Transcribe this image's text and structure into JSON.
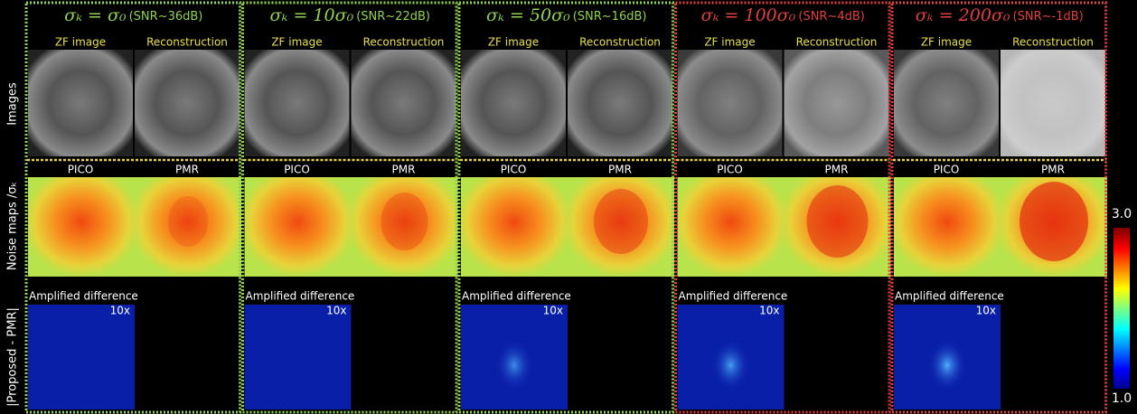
{
  "row_labels": [
    "Images",
    "Noise maps /σₖ",
    "|Proposed - PMR|"
  ],
  "image_labels": [
    "ZF image",
    "Reconstruction"
  ],
  "noise_labels": [
    "PICO",
    "PMR"
  ],
  "difference_label": "Amplified difference",
  "amplification": "10x",
  "columns": [
    {
      "formula": "σₖ = σ₀",
      "snr": "(SNR~36dB)",
      "color": "#8fd14f"
    },
    {
      "formula": "σₖ = 10σ₀",
      "snr": "(SNR~22dB)",
      "color": "#8fd14f"
    },
    {
      "formula": "σₖ = 50σ₀",
      "snr": "(SNR~16dB)",
      "color": "#8fd14f"
    },
    {
      "formula": "σₖ = 100σ₀",
      "snr": "(SNR~4dB)",
      "color": "#e0403c"
    },
    {
      "formula": "σₖ = 200σ₀",
      "snr": "(SNR~-1dB)",
      "color": "#e0403c"
    }
  ],
  "colorbar": {
    "max": "3.0",
    "min": "1.0"
  }
}
